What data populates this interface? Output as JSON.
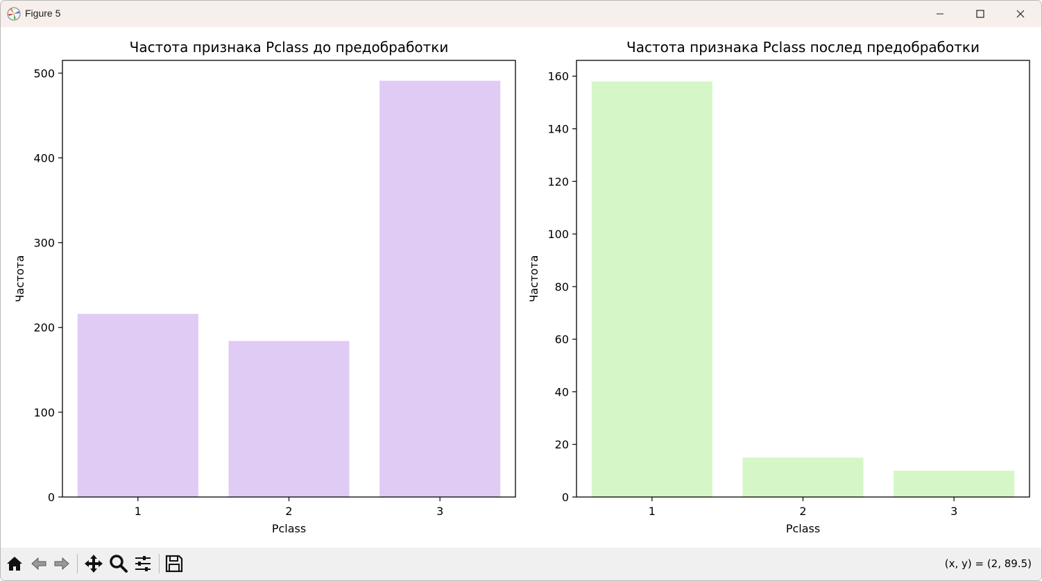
{
  "window": {
    "title": "Figure 5"
  },
  "toolbar": {
    "coord_readout": "(x, y) = (2, 89.5)",
    "icons": [
      "home-icon",
      "back-arrow-icon",
      "forward-arrow-icon",
      "pan-icon",
      "zoom-icon",
      "configure-subplots-icon",
      "save-icon"
    ]
  },
  "chart_data": [
    {
      "type": "bar",
      "title": "Частота признака Pclass до предобработки",
      "xlabel": "Pclass",
      "ylabel": "Частота",
      "categories": [
        "1",
        "2",
        "3"
      ],
      "values": [
        216,
        184,
        491
      ],
      "ylim": [
        0,
        515
      ],
      "yticks": [
        0,
        100,
        200,
        300,
        400,
        500
      ],
      "color": "#e0cbf5"
    },
    {
      "type": "bar",
      "title": "Частота признака Pclass послед предобработки",
      "xlabel": "Pclass",
      "ylabel": "Частота",
      "categories": [
        "1",
        "2",
        "3"
      ],
      "values": [
        158,
        15,
        10
      ],
      "ylim": [
        0,
        166
      ],
      "yticks": [
        0,
        20,
        40,
        60,
        80,
        100,
        120,
        140,
        160
      ],
      "color": "#d5f7c7"
    }
  ]
}
